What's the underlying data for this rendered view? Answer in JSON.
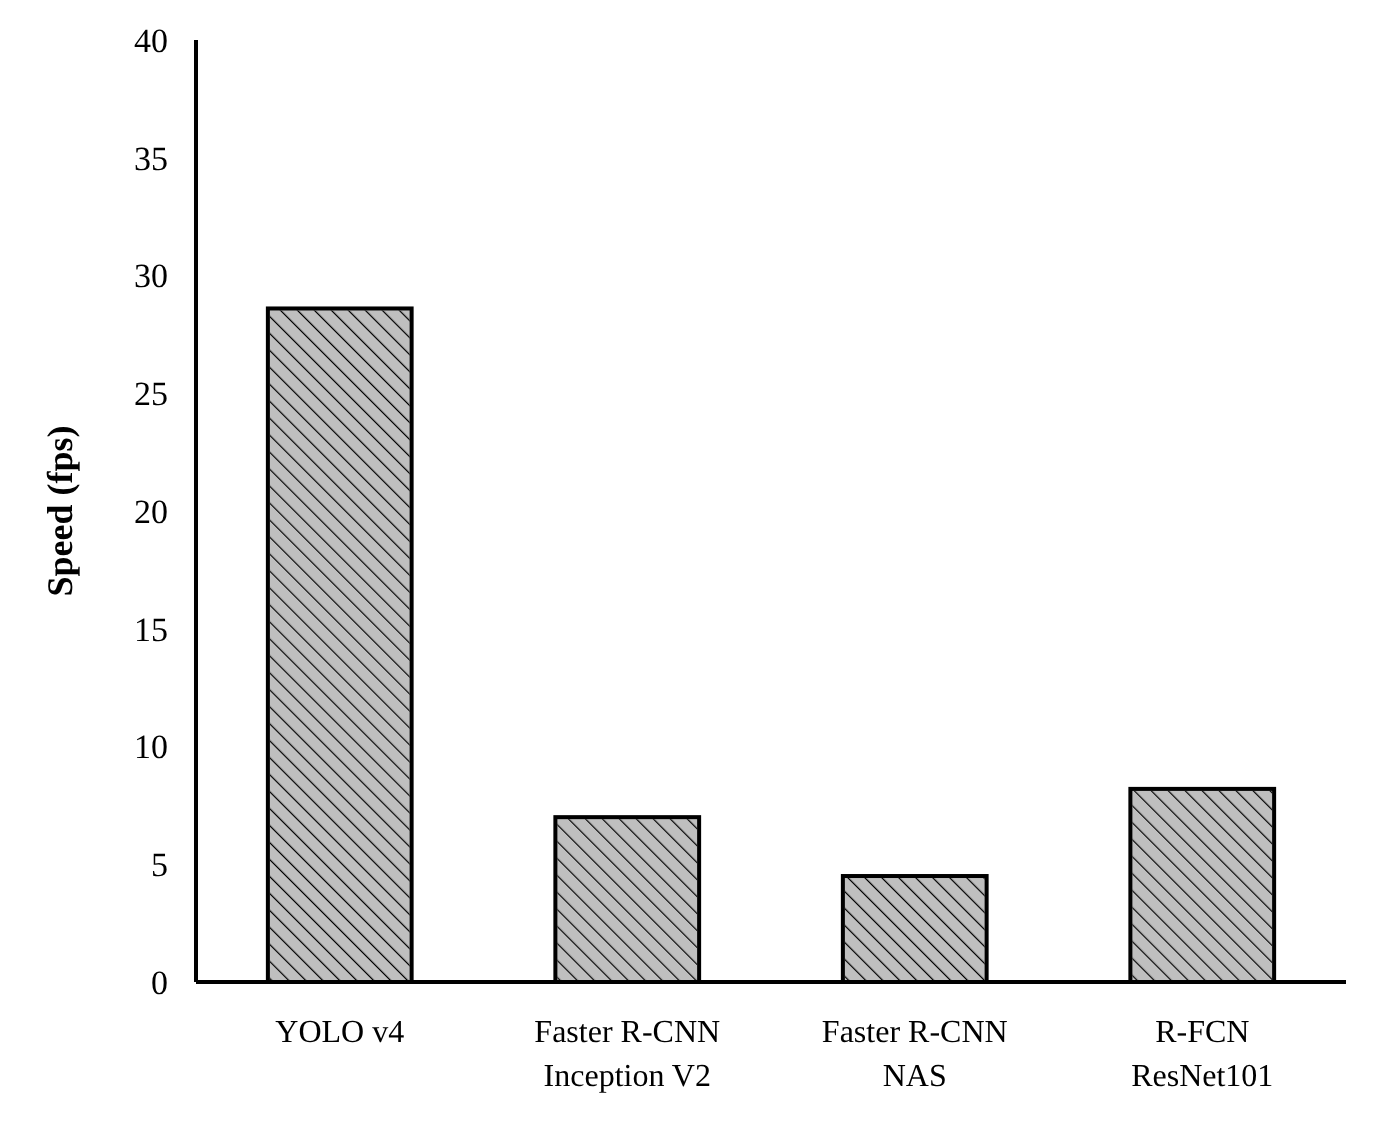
{
  "chart_data": {
    "type": "bar",
    "ylabel": "Speed (fps)",
    "categories": [
      "YOLO v4",
      "Faster R-CNN\nInception V2",
      "Faster R-CNN\nNAS",
      "R-FCN\nResNet101"
    ],
    "values": [
      28.6,
      7.0,
      4.5,
      8.2
    ],
    "color": "#bfbfbf",
    "ylim": [
      0,
      40
    ],
    "yticks": [
      0,
      5,
      10,
      15,
      20,
      25,
      30,
      35,
      40
    ],
    "grid": false
  }
}
